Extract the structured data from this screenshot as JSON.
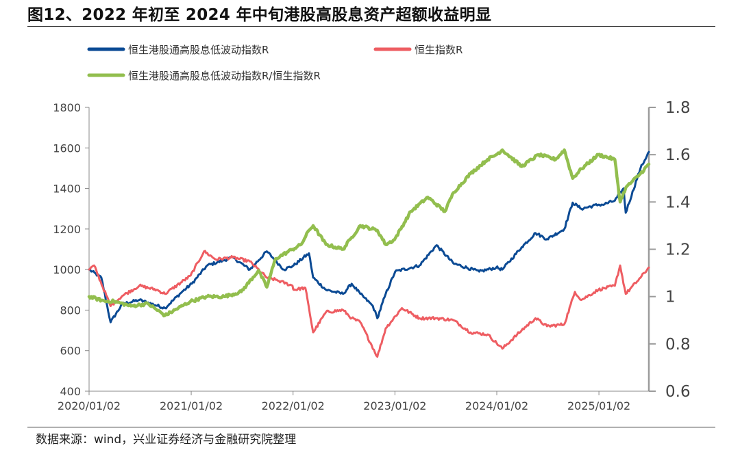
{
  "title": "图12、2022 年初至 2024 年中旬港股高股息资产超额收益明显",
  "source": "数据来源：wind，兴业证券经济与金融研究院整理",
  "colors": {
    "series_low_vol": "#0b4a94",
    "series_hsi": "#ee5d62",
    "series_ratio": "#92be4e",
    "axis": "#888888",
    "right_axis": "#9b9b9b"
  },
  "chart_data": {
    "type": "line",
    "legend_placement": "top",
    "grid": false,
    "x_ticks": [
      "2020/01/02",
      "2021/01/02",
      "2022/01/02",
      "2023/01/02",
      "2024/01/02",
      "2025/01/02"
    ],
    "x_range": [
      "2020/01/02",
      "2025/06/30"
    ],
    "y_left": {
      "range": [
        400,
        1800
      ],
      "ticks": [
        "400",
        "600",
        "800",
        "1000",
        "1200",
        "1400",
        "1600",
        "1800"
      ]
    },
    "y_right": {
      "range": [
        0.6,
        1.8
      ],
      "ticks": [
        "0.6",
        "0.8",
        "1",
        "1.2",
        "1.4",
        "1.6",
        "1.8"
      ]
    },
    "series": [
      {
        "name": "恒生港股通高股息低波动指数R",
        "axis": "left",
        "x": [
          "2020-01-02",
          "2020-02-15",
          "2020-03-19",
          "2020-04-30",
          "2020-06-30",
          "2020-09-30",
          "2020-11-30",
          "2021-01-04",
          "2021-02-28",
          "2021-05-31",
          "2021-07-31",
          "2021-09-30",
          "2021-11-30",
          "2022-01-04",
          "2022-02-28",
          "2022-03-15",
          "2022-04-30",
          "2022-06-30",
          "2022-07-31",
          "2022-08-31",
          "2022-10-15",
          "2022-10-31",
          "2022-11-30",
          "2023-01-03",
          "2023-03-31",
          "2023-05-31",
          "2023-07-31",
          "2023-10-31",
          "2023-12-31",
          "2024-01-22",
          "2024-03-31",
          "2024-05-20",
          "2024-06-30",
          "2024-08-31",
          "2024-09-30",
          "2024-10-31",
          "2024-12-31",
          "2025-01-15",
          "2025-02-28",
          "2025-03-31",
          "2025-04-08",
          "2025-05-31",
          "2025-06-30"
        ],
        "y": [
          1000,
          960,
          740,
          830,
          850,
          810,
          890,
          930,
          1020,
          1060,
          1000,
          1090,
          1000,
          1020,
          1080,
          960,
          900,
          880,
          930,
          880,
          820,
          760,
          880,
          990,
          1020,
          1120,
          1030,
          990,
          1010,
          1000,
          1110,
          1180,
          1150,
          1200,
          1330,
          1300,
          1320,
          1320,
          1340,
          1400,
          1280,
          1500,
          1580
        ]
      },
      {
        "name": "恒生指数R",
        "axis": "left",
        "x": [
          "2020-01-02",
          "2020-01-20",
          "2020-03-19",
          "2020-04-30",
          "2020-06-30",
          "2020-08-31",
          "2020-09-30",
          "2020-12-31",
          "2021-02-17",
          "2021-03-31",
          "2021-05-31",
          "2021-07-31",
          "2021-09-30",
          "2021-10-31",
          "2021-12-31",
          "2022-01-04",
          "2022-02-15",
          "2022-03-15",
          "2022-04-30",
          "2022-06-30",
          "2022-07-31",
          "2022-08-31",
          "2022-10-31",
          "2022-11-30",
          "2023-01-27",
          "2023-03-31",
          "2023-05-31",
          "2023-07-31",
          "2023-09-30",
          "2023-11-30",
          "2024-01-22",
          "2024-03-31",
          "2024-05-20",
          "2024-06-30",
          "2024-08-31",
          "2024-10-08",
          "2024-10-31",
          "2024-12-31",
          "2025-02-28",
          "2025-03-19",
          "2025-04-08",
          "2025-05-31",
          "2025-06-30"
        ],
        "y": [
          1000,
          1020,
          820,
          870,
          920,
          900,
          880,
          970,
          1090,
          1050,
          1060,
          1040,
          960,
          950,
          920,
          900,
          910,
          690,
          790,
          800,
          760,
          740,
          570,
          710,
          810,
          760,
          760,
          750,
          690,
          680,
          610,
          700,
          760,
          720,
          730,
          890,
          850,
          900,
          920,
          1020,
          880,
          960,
          1010
        ]
      },
      {
        "name": "恒生港股通高股息低波动指数R/恒生指数R",
        "axis": "right",
        "x": [
          "2020-01-02",
          "2020-02-28",
          "2020-03-31",
          "2020-05-31",
          "2020-07-31",
          "2020-09-30",
          "2020-12-31",
          "2021-02-28",
          "2021-04-30",
          "2021-06-30",
          "2021-08-31",
          "2021-09-30",
          "2021-10-31",
          "2021-12-31",
          "2022-01-31",
          "2022-02-28",
          "2022-03-15",
          "2022-04-30",
          "2022-06-30",
          "2022-07-31",
          "2022-08-31",
          "2022-10-31",
          "2022-11-30",
          "2022-12-31",
          "2023-02-28",
          "2023-04-30",
          "2023-06-30",
          "2023-07-31",
          "2023-09-30",
          "2023-11-30",
          "2023-12-31",
          "2024-01-22",
          "2024-03-31",
          "2024-05-31",
          "2024-07-31",
          "2024-08-31",
          "2024-09-30",
          "2024-10-31",
          "2024-12-31",
          "2025-02-28",
          "2025-03-19",
          "2025-04-08",
          "2025-05-31",
          "2025-06-30"
        ],
        "y": [
          1.0,
          0.98,
          0.98,
          0.96,
          0.97,
          0.92,
          0.98,
          1.0,
          1.0,
          1.02,
          1.11,
          1.04,
          1.16,
          1.2,
          1.22,
          1.28,
          1.3,
          1.22,
          1.2,
          1.25,
          1.3,
          1.28,
          1.22,
          1.24,
          1.36,
          1.42,
          1.36,
          1.44,
          1.52,
          1.58,
          1.6,
          1.62,
          1.55,
          1.6,
          1.58,
          1.62,
          1.5,
          1.54,
          1.6,
          1.58,
          1.4,
          1.46,
          1.52,
          1.56
        ]
      }
    ]
  }
}
